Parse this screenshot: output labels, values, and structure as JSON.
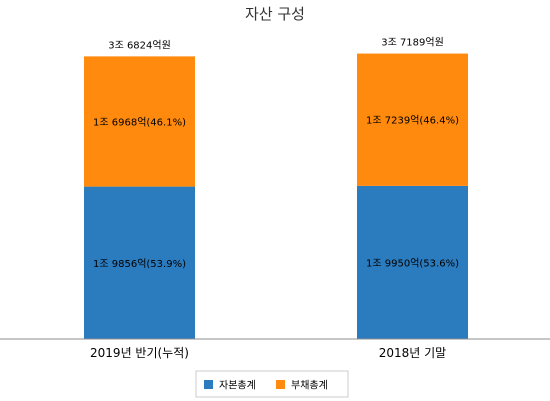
{
  "chart_data": {
    "type": "bar",
    "stacked": true,
    "title": "자산 구성",
    "categories": [
      "2019년 반기(누적)",
      "2018년 기말"
    ],
    "series": [
      {
        "name": "자본총계",
        "color": "#2b7bbf",
        "values": [
          19856,
          19950
        ],
        "labels": [
          "1조 9856억(53.9%)",
          "1조 9950억(53.6%)"
        ]
      },
      {
        "name": "부채총계",
        "color": "#ff8a0d",
        "values": [
          16968,
          17239
        ],
        "labels": [
          "1조 6968억(46.1%)",
          "1조 7239억(46.4%)"
        ]
      }
    ],
    "totals": [
      "3조 6824억원",
      "3조 7189억원"
    ],
    "value_unit": "억원",
    "ylim": [
      0,
      40000
    ],
    "grid": false,
    "legend_position": "bottom"
  }
}
